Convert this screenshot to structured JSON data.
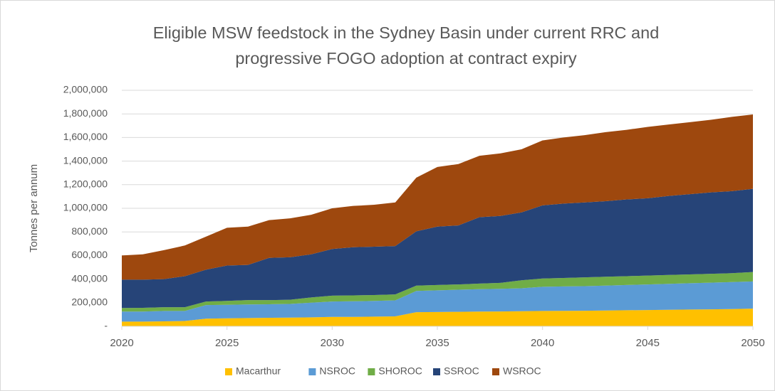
{
  "chart_data": {
    "type": "stacked_area",
    "title": "Eligible MSW feedstock in the Sydney Basin under current RRC and progressive FOGO adoption at contract expiry",
    "y_label": "Tonnes per annum",
    "x": [
      2020,
      2021,
      2022,
      2023,
      2024,
      2025,
      2026,
      2027,
      2028,
      2029,
      2030,
      2031,
      2032,
      2033,
      2034,
      2035,
      2036,
      2037,
      2038,
      2039,
      2040,
      2041,
      2042,
      2043,
      2044,
      2045,
      2046,
      2047,
      2048,
      2049,
      2050
    ],
    "xlim": [
      2020,
      2050
    ],
    "xticks": [
      2020,
      2025,
      2030,
      2035,
      2040,
      2045,
      2050
    ],
    "ylim": [
      0,
      2000000
    ],
    "yticks": [
      {
        "value": 0,
        "label": "-"
      },
      {
        "value": 200000,
        "label": "200,000"
      },
      {
        "value": 400000,
        "label": "400,000"
      },
      {
        "value": 600000,
        "label": "600,000"
      },
      {
        "value": 800000,
        "label": "800,000"
      },
      {
        "value": 1000000,
        "label": "1,000,000"
      },
      {
        "value": 1200000,
        "label": "1,200,000"
      },
      {
        "value": 1400000,
        "label": "1,400,000"
      },
      {
        "value": 1600000,
        "label": "1,600,000"
      },
      {
        "value": 1800000,
        "label": "1,800,000"
      },
      {
        "value": 2000000,
        "label": "2,000,000"
      }
    ],
    "grid": true,
    "legend": "bottom",
    "series": [
      {
        "name": "Macarthur",
        "color": "#ffc000",
        "values": [
          40000,
          40000,
          42000,
          45000,
          65000,
          68000,
          70000,
          72000,
          74000,
          76000,
          80000,
          80000,
          82000,
          84000,
          120000,
          121000,
          123000,
          125000,
          126000,
          128000,
          130000,
          131000,
          132000,
          134000,
          136000,
          138000,
          140000,
          142000,
          144000,
          146000,
          150000
        ]
      },
      {
        "name": "NSROC",
        "color": "#5b9bd5",
        "values": [
          85000,
          85000,
          88000,
          85000,
          115000,
          114000,
          115000,
          115000,
          116000,
          124000,
          130000,
          132000,
          133000,
          136000,
          180000,
          184000,
          187000,
          190000,
          192000,
          194000,
          205000,
          207000,
          208000,
          211000,
          214000,
          217000,
          220000,
          223000,
          226000,
          229000,
          230000
        ]
      },
      {
        "name": "SHOROC",
        "color": "#70ad47",
        "values": [
          30000,
          32000,
          32000,
          32000,
          30000,
          33000,
          37000,
          35000,
          35000,
          45000,
          50000,
          50000,
          50000,
          50000,
          45000,
          45000,
          45000,
          47000,
          50000,
          68000,
          70000,
          72000,
          75000,
          75000,
          75000,
          75000,
          75000,
          75000,
          75000,
          75000,
          80000
        ]
      },
      {
        "name": "SSROC",
        "color": "#264478",
        "values": [
          240000,
          238000,
          238000,
          263000,
          270000,
          300000,
          298000,
          358000,
          360000,
          365000,
          395000,
          408000,
          410000,
          410000,
          460000,
          495000,
          500000,
          563000,
          567000,
          575000,
          620000,
          630000,
          635000,
          640000,
          650000,
          655000,
          670000,
          680000,
          690000,
          695000,
          705000
        ]
      },
      {
        "name": "WSROC",
        "color": "#9e480e",
        "values": [
          205000,
          215000,
          245000,
          260000,
          280000,
          320000,
          325000,
          320000,
          330000,
          335000,
          345000,
          350000,
          355000,
          370000,
          455000,
          505000,
          520000,
          520000,
          530000,
          535000,
          550000,
          560000,
          570000,
          585000,
          590000,
          605000,
          605000,
          610000,
          615000,
          630000,
          630000
        ]
      }
    ]
  }
}
